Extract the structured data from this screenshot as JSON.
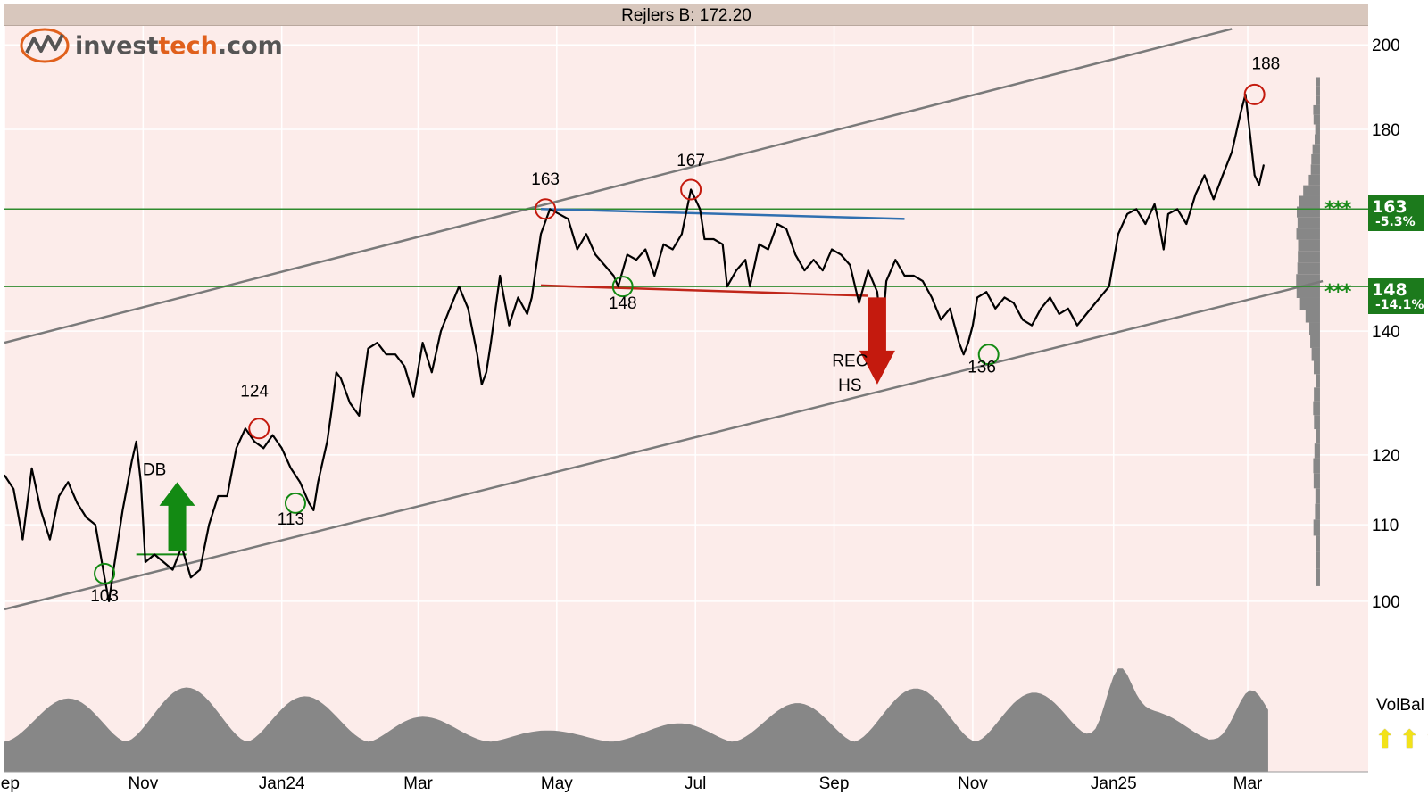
{
  "chart_data": {
    "type": "line",
    "title": "Rejlers B: 172.20",
    "y_scale": "log",
    "ylim": [
      95,
      205
    ],
    "y_ticks": [
      100,
      110,
      120,
      140,
      163,
      180,
      200
    ],
    "x_labels": [
      "Sep",
      "Nov",
      "Jan24",
      "Mar",
      "May",
      "Jul",
      "Sep",
      "Nov",
      "Jan25",
      "Mar"
    ],
    "x_label_days": [
      0,
      61,
      122,
      182,
      243,
      304,
      365,
      426,
      488,
      547
    ],
    "xlim_days": [
      0,
      600
    ],
    "start_date": "2023-09-01",
    "close_price": 172.2,
    "price": [
      [
        0,
        117
      ],
      [
        4,
        115
      ],
      [
        8,
        108
      ],
      [
        12,
        118
      ],
      [
        16,
        112
      ],
      [
        20,
        108
      ],
      [
        24,
        114
      ],
      [
        28,
        116
      ],
      [
        32,
        113
      ],
      [
        36,
        111
      ],
      [
        40,
        110
      ],
      [
        44,
        103
      ],
      [
        46,
        100
      ],
      [
        48,
        104
      ],
      [
        52,
        112
      ],
      [
        56,
        119
      ],
      [
        58,
        122
      ],
      [
        60,
        116
      ],
      [
        62,
        105
      ],
      [
        66,
        106
      ],
      [
        70,
        105
      ],
      [
        74,
        104
      ],
      [
        78,
        107
      ],
      [
        82,
        103
      ],
      [
        86,
        104
      ],
      [
        90,
        110
      ],
      [
        94,
        114
      ],
      [
        98,
        114
      ],
      [
        102,
        121
      ],
      [
        106,
        124
      ],
      [
        110,
        122
      ],
      [
        114,
        121
      ],
      [
        118,
        123
      ],
      [
        122,
        121
      ],
      [
        126,
        118
      ],
      [
        130,
        116
      ],
      [
        134,
        113
      ],
      [
        136,
        112
      ],
      [
        138,
        116
      ],
      [
        142,
        122
      ],
      [
        144,
        127
      ],
      [
        146,
        133
      ],
      [
        148,
        132
      ],
      [
        152,
        128
      ],
      [
        156,
        126
      ],
      [
        160,
        137
      ],
      [
        164,
        138
      ],
      [
        168,
        136
      ],
      [
        172,
        136
      ],
      [
        176,
        134
      ],
      [
        180,
        129
      ],
      [
        184,
        138
      ],
      [
        188,
        133
      ],
      [
        192,
        140
      ],
      [
        196,
        144
      ],
      [
        200,
        148
      ],
      [
        204,
        144
      ],
      [
        208,
        136
      ],
      [
        210,
        131
      ],
      [
        212,
        133
      ],
      [
        214,
        138
      ],
      [
        218,
        150
      ],
      [
        222,
        141
      ],
      [
        226,
        146
      ],
      [
        230,
        143
      ],
      [
        232,
        146
      ],
      [
        236,
        158
      ],
      [
        240,
        163
      ],
      [
        244,
        162
      ],
      [
        248,
        161
      ],
      [
        252,
        155
      ],
      [
        256,
        158
      ],
      [
        260,
        154
      ],
      [
        264,
        152
      ],
      [
        268,
        150
      ],
      [
        270,
        148
      ],
      [
        274,
        154
      ],
      [
        278,
        153
      ],
      [
        282,
        155
      ],
      [
        286,
        150
      ],
      [
        290,
        156
      ],
      [
        294,
        155
      ],
      [
        298,
        158
      ],
      [
        302,
        167
      ],
      [
        306,
        163
      ],
      [
        308,
        157
      ],
      [
        312,
        157
      ],
      [
        316,
        156
      ],
      [
        318,
        148
      ],
      [
        322,
        151
      ],
      [
        326,
        153
      ],
      [
        328,
        148
      ],
      [
        332,
        156
      ],
      [
        336,
        155
      ],
      [
        340,
        160
      ],
      [
        344,
        159
      ],
      [
        348,
        154
      ],
      [
        352,
        151
      ],
      [
        356,
        153
      ],
      [
        360,
        151
      ],
      [
        364,
        155
      ],
      [
        368,
        154
      ],
      [
        372,
        152
      ],
      [
        376,
        145
      ],
      [
        380,
        151
      ],
      [
        384,
        147
      ],
      [
        386,
        139
      ],
      [
        388,
        149
      ],
      [
        392,
        153
      ],
      [
        396,
        150
      ],
      [
        400,
        150
      ],
      [
        404,
        149
      ],
      [
        408,
        146
      ],
      [
        412,
        142
      ],
      [
        416,
        144
      ],
      [
        420,
        138
      ],
      [
        422,
        136
      ],
      [
        424,
        138
      ],
      [
        426,
        141
      ],
      [
        428,
        146
      ],
      [
        432,
        147
      ],
      [
        436,
        144
      ],
      [
        440,
        146
      ],
      [
        444,
        145
      ],
      [
        448,
        142
      ],
      [
        452,
        141
      ],
      [
        456,
        144
      ],
      [
        460,
        146
      ],
      [
        464,
        143
      ],
      [
        468,
        144
      ],
      [
        472,
        141
      ],
      [
        476,
        143
      ],
      [
        480,
        145
      ],
      [
        484,
        147
      ],
      [
        486,
        148
      ],
      [
        490,
        158
      ],
      [
        494,
        162
      ],
      [
        498,
        163
      ],
      [
        502,
        160
      ],
      [
        506,
        164
      ],
      [
        508,
        160
      ],
      [
        510,
        155
      ],
      [
        512,
        162
      ],
      [
        516,
        163
      ],
      [
        520,
        160
      ],
      [
        524,
        166
      ],
      [
        528,
        170
      ],
      [
        532,
        165
      ],
      [
        536,
        170
      ],
      [
        540,
        175
      ],
      [
        544,
        184
      ],
      [
        546,
        188
      ],
      [
        548,
        179
      ],
      [
        550,
        170
      ],
      [
        552,
        168
      ],
      [
        554,
        172.2
      ]
    ]
  },
  "annotations": {
    "labels": [
      {
        "text": "103",
        "d": 44,
        "v": 100
      },
      {
        "text": "124",
        "d": 110,
        "v": 129
      },
      {
        "text": "113",
        "d": 126,
        "v": 110
      },
      {
        "text": "163",
        "d": 238,
        "v": 168
      },
      {
        "text": "148",
        "d": 272,
        "v": 144
      },
      {
        "text": "167",
        "d": 302,
        "v": 172
      },
      {
        "text": "136",
        "d": 430,
        "v": 133
      },
      {
        "text": "188",
        "d": 555,
        "v": 194
      },
      {
        "text": "DB",
        "d": 66,
        "v": 117
      },
      {
        "text": "REC",
        "d": 372,
        "v": 134
      },
      {
        "text": "HS",
        "d": 372,
        "v": 130
      }
    ],
    "circles": [
      {
        "d": 44,
        "v": 103.5,
        "color": "green"
      },
      {
        "d": 112,
        "v": 124,
        "color": "red"
      },
      {
        "d": 128,
        "v": 113,
        "color": "green"
      },
      {
        "d": 238,
        "v": 163,
        "color": "red"
      },
      {
        "d": 272,
        "v": 148,
        "color": "green"
      },
      {
        "d": 302,
        "v": 167,
        "color": "red"
      },
      {
        "d": 433,
        "v": 136,
        "color": "green"
      },
      {
        "d": 550,
        "v": 188,
        "color": "red"
      }
    ]
  },
  "levels": [
    {
      "price": 163,
      "label": "163",
      "pct": "-5.3%",
      "stars": "***"
    },
    {
      "price": 148,
      "label": "148",
      "pct": "-14.1%",
      "stars": "***"
    }
  ],
  "indicator": {
    "label": "VolBal",
    "arrows": "⬆⬆⬆"
  },
  "logo": {
    "part1": "invest",
    "part2": "tech",
    "part3": ".com"
  },
  "colors": {
    "background": "#fcecea",
    "price_line": "#000000",
    "channel": "#7a7a7a",
    "support": "#2e8b2e",
    "resistance_blue": "#2f6fb0",
    "neckline_red": "#c0261a",
    "signal_red": "#c41a0e",
    "signal_green": "#138a13",
    "volume": "#878787"
  }
}
